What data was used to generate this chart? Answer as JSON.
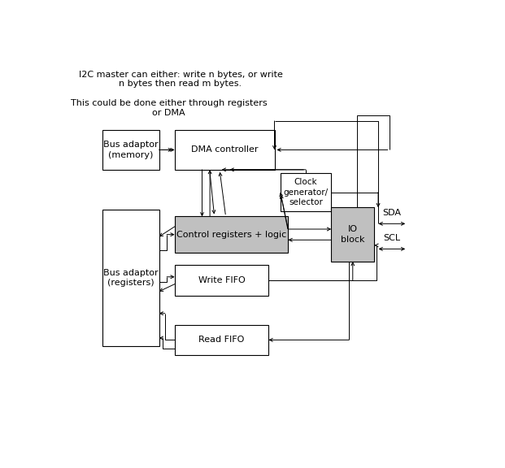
{
  "figsize": [
    6.21,
    5.76
  ],
  "dpi": 100,
  "bg_color": "#ffffff",
  "text_color": "#000000",
  "box_edge_color": "#000000",
  "box_fill_white": "#ffffff",
  "box_fill_gray": "#c0c0c0",
  "font_size": 8,
  "title1": "I2C master can either: write n bytes, or write",
  "title2": "n bytes then read m bytes.",
  "sub1": "This could be done either through registers",
  "sub2": "or DMA",
  "boxes": {
    "bus_mem": [
      0.1,
      0.685,
      0.145,
      0.11
    ],
    "dma_ctrl": [
      0.285,
      0.685,
      0.255,
      0.11
    ],
    "clock_gen": [
      0.555,
      0.57,
      0.13,
      0.105
    ],
    "ctrl_regs": [
      0.285,
      0.455,
      0.29,
      0.1
    ],
    "io_block": [
      0.685,
      0.43,
      0.11,
      0.15
    ],
    "bus_reg": [
      0.1,
      0.195,
      0.145,
      0.38
    ],
    "write_fifo": [
      0.285,
      0.335,
      0.24,
      0.085
    ],
    "read_fifo": [
      0.285,
      0.17,
      0.24,
      0.085
    ]
  }
}
